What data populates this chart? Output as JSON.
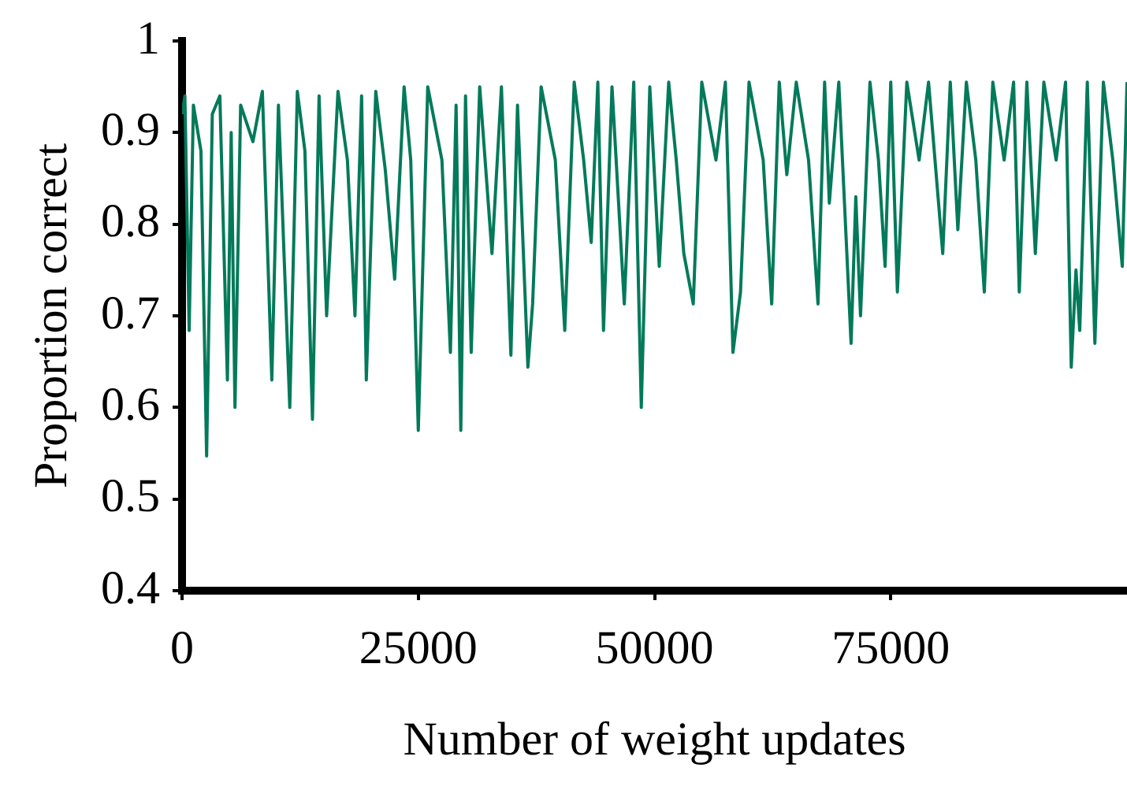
{
  "chart_data": {
    "type": "line",
    "xlabel": "Number of weight updates",
    "ylabel": "Proportion correct",
    "x": [
      0,
      300,
      750,
      1200,
      2000,
      2600,
      3200,
      4000,
      4800,
      5200,
      5600,
      6200,
      7500,
      8500,
      9500,
      10200,
      11400,
      12200,
      13000,
      13800,
      14500,
      15300,
      16500,
      17500,
      18300,
      19000,
      19500,
      20500,
      21500,
      22500,
      23500,
      24200,
      25000,
      26000,
      27500,
      28400,
      29000,
      29500,
      30000,
      30600,
      31500,
      32800,
      33800,
      34800,
      35500,
      36600,
      37100,
      38000,
      39500,
      40500,
      41500,
      42500,
      43300,
      44000,
      44600,
      45500,
      46800,
      47800,
      48600,
      49500,
      50500,
      51500,
      52300,
      53100,
      54100,
      55000,
      56500,
      57500,
      58300,
      59100,
      60000,
      61500,
      62400,
      63200,
      64000,
      65000,
      66300,
      67300,
      68000,
      68500,
      69500,
      70800,
      71300,
      71800,
      72800,
      73700,
      74400,
      75000,
      75700,
      76700,
      78000,
      79000,
      80500,
      81300,
      82100,
      83000,
      84000,
      84900,
      85800,
      87000,
      88000,
      88600,
      89400,
      90300,
      91200,
      92500,
      93500,
      94100,
      94600,
      95000,
      95800,
      96600,
      97500,
      98500,
      99500,
      100000
    ],
    "series": [
      {
        "color": "#037a5a",
        "values": [
          0.92,
          0.94,
          0.684,
          0.93,
          0.88,
          0.547,
          0.92,
          0.94,
          0.63,
          0.9,
          0.6,
          0.93,
          0.89,
          0.945,
          0.63,
          0.93,
          0.6,
          0.945,
          0.88,
          0.587,
          0.94,
          0.7,
          0.945,
          0.87,
          0.7,
          0.94,
          0.63,
          0.945,
          0.86,
          0.74,
          0.95,
          0.87,
          0.575,
          0.95,
          0.87,
          0.66,
          0.93,
          0.575,
          0.94,
          0.66,
          0.95,
          0.768,
          0.95,
          0.657,
          0.93,
          0.644,
          0.713,
          0.95,
          0.87,
          0.684,
          0.955,
          0.87,
          0.78,
          0.955,
          0.684,
          0.95,
          0.713,
          0.955,
          0.6,
          0.95,
          0.754,
          0.955,
          0.87,
          0.768,
          0.713,
          0.955,
          0.87,
          0.955,
          0.66,
          0.726,
          0.955,
          0.87,
          0.713,
          0.955,
          0.854,
          0.955,
          0.87,
          0.713,
          0.955,
          0.823,
          0.955,
          0.67,
          0.83,
          0.7,
          0.955,
          0.87,
          0.754,
          0.955,
          0.726,
          0.955,
          0.87,
          0.955,
          0.768,
          0.955,
          0.794,
          0.955,
          0.87,
          0.726,
          0.955,
          0.87,
          0.955,
          0.726,
          0.955,
          0.768,
          0.955,
          0.87,
          0.955,
          0.644,
          0.75,
          0.684,
          0.955,
          0.67,
          0.955,
          0.87,
          0.754,
          0.955
        ]
      }
    ],
    "xlim": [
      0,
      100000
    ],
    "xticks": [
      0,
      25000,
      50000,
      75000
    ],
    "ylim": [
      0.4,
      1
    ],
    "yticks": [
      0.4,
      0.5,
      0.6,
      0.7,
      0.8,
      0.9,
      1
    ],
    "marker": "none",
    "line_style": "solid",
    "legend": false
  }
}
